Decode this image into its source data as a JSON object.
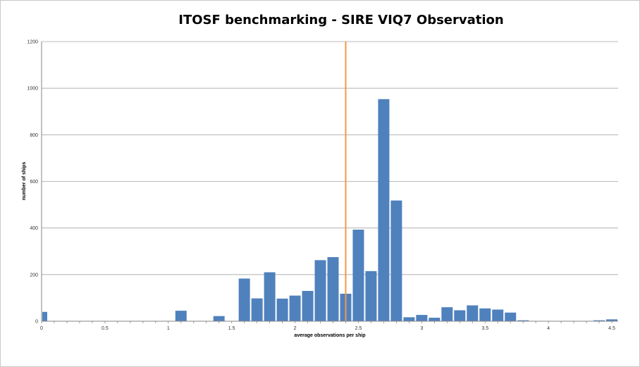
{
  "chart_data": {
    "type": "bar",
    "title": "ITOSF benchmarking - SIRE VIQ7 Observation",
    "xlabel": "average observations per ship",
    "ylabel": "number of ships",
    "xlim": [
      0,
      4.55
    ],
    "ylim": [
      0,
      1200
    ],
    "bin_width": 0.1,
    "y_ticks": [
      "0",
      "200",
      "400",
      "600",
      "800",
      "1000",
      "1200"
    ],
    "x_ticks": [
      "0",
      "0.5",
      "1",
      "1.5",
      "2",
      "2.5",
      "3",
      "3.5",
      "4",
      "4.5"
    ],
    "grid": true,
    "legend": "none",
    "reference_line_x": 2.4,
    "colors": {
      "bars": "#4f81bd",
      "reference_line": "#f79646",
      "grid": "#a6a6a6"
    },
    "x": [
      0,
      1.1,
      1.4,
      1.6,
      1.7,
      1.8,
      1.9,
      2.0,
      2.1,
      2.2,
      2.3,
      2.4,
      2.5,
      2.6,
      2.7,
      2.8,
      2.9,
      3.0,
      3.1,
      3.2,
      3.3,
      3.4,
      3.5,
      3.6,
      3.7,
      3.8,
      4.4,
      4.5
    ],
    "values": [
      40,
      45,
      22,
      183,
      98,
      210,
      97,
      110,
      130,
      262,
      275,
      118,
      393,
      215,
      953,
      518,
      17,
      27,
      15,
      60,
      47,
      68,
      55,
      50,
      37,
      4,
      4,
      8
    ]
  }
}
